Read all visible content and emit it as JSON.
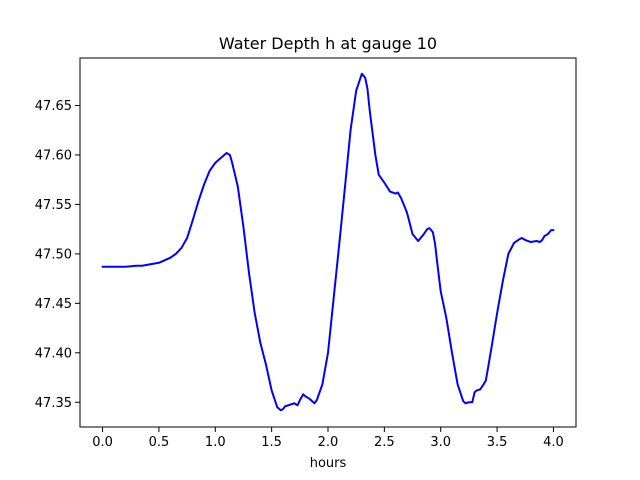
{
  "chart_data": {
    "type": "line",
    "title": "Water Depth h at gauge 10",
    "xlabel": "hours",
    "ylabel": "",
    "xlim": [
      -0.2,
      4.2
    ],
    "ylim": [
      47.325,
      47.698
    ],
    "xticks": [
      0.0,
      0.5,
      1.0,
      1.5,
      2.0,
      2.5,
      3.0,
      3.5,
      4.0
    ],
    "xtick_labels": [
      "0.0",
      "0.5",
      "1.0",
      "1.5",
      "2.0",
      "2.5",
      "3.0",
      "3.5",
      "4.0"
    ],
    "yticks": [
      47.35,
      47.4,
      47.45,
      47.5,
      47.55,
      47.6,
      47.65
    ],
    "ytick_labels": [
      "47.35",
      "47.40",
      "47.45",
      "47.50",
      "47.55",
      "47.60",
      "47.65"
    ],
    "grid": false,
    "series": [
      {
        "name": "",
        "color": "#0000ff",
        "x": [
          0.0,
          0.1,
          0.2,
          0.3,
          0.35,
          0.4,
          0.5,
          0.6,
          0.65,
          0.7,
          0.75,
          0.8,
          0.85,
          0.9,
          0.95,
          1.0,
          1.05,
          1.08,
          1.1,
          1.13,
          1.15,
          1.2,
          1.25,
          1.3,
          1.35,
          1.4,
          1.45,
          1.5,
          1.55,
          1.58,
          1.6,
          1.62,
          1.65,
          1.7,
          1.73,
          1.75,
          1.78,
          1.8,
          1.83,
          1.85,
          1.88,
          1.9,
          1.95,
          2.0,
          2.05,
          2.1,
          2.15,
          2.2,
          2.25,
          2.3,
          2.33,
          2.35,
          2.37,
          2.4,
          2.42,
          2.45,
          2.5,
          2.55,
          2.6,
          2.62,
          2.65,
          2.7,
          2.75,
          2.8,
          2.85,
          2.88,
          2.9,
          2.93,
          2.95,
          2.97,
          3.0,
          3.05,
          3.1,
          3.15,
          3.2,
          3.22,
          3.25,
          3.28,
          3.3,
          3.32,
          3.35,
          3.38,
          3.4,
          3.42,
          3.45,
          3.5,
          3.55,
          3.6,
          3.65,
          3.7,
          3.72,
          3.75,
          3.8,
          3.85,
          3.88,
          3.9,
          3.92,
          3.95,
          3.98,
          4.0
        ],
        "y": [
          47.487,
          47.487,
          47.487,
          47.488,
          47.488,
          47.489,
          47.491,
          47.496,
          47.5,
          47.506,
          47.516,
          47.534,
          47.553,
          47.57,
          47.584,
          47.592,
          47.597,
          47.6,
          47.602,
          47.6,
          47.592,
          47.568,
          47.527,
          47.48,
          47.44,
          47.41,
          47.388,
          47.362,
          47.345,
          47.342,
          47.343,
          47.346,
          47.347,
          47.349,
          47.347,
          47.352,
          47.358,
          47.356,
          47.354,
          47.352,
          47.349,
          47.352,
          47.368,
          47.4,
          47.455,
          47.51,
          47.567,
          47.625,
          47.665,
          47.682,
          47.678,
          47.667,
          47.645,
          47.618,
          47.6,
          47.58,
          47.572,
          47.563,
          47.561,
          47.562,
          47.556,
          47.542,
          47.52,
          47.513,
          47.52,
          47.525,
          47.526,
          47.522,
          47.51,
          47.49,
          47.462,
          47.435,
          47.4,
          47.368,
          47.351,
          47.349,
          47.35,
          47.35,
          47.36,
          47.362,
          47.363,
          47.368,
          47.372,
          47.385,
          47.405,
          47.44,
          47.472,
          47.5,
          47.511,
          47.515,
          47.516,
          47.514,
          47.512,
          47.513,
          47.512,
          47.514,
          47.518,
          47.52,
          47.524,
          47.524
        ]
      }
    ]
  }
}
